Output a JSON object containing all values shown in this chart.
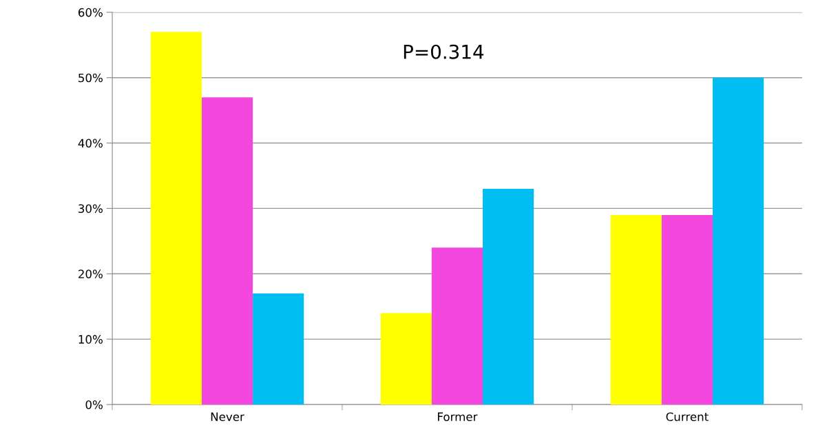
{
  "chart_data": {
    "type": "bar",
    "categories": [
      "Never",
      "Former",
      "Current"
    ],
    "series": [
      {
        "color": "#ffff00",
        "values": [
          57,
          14,
          29
        ]
      },
      {
        "color": "#f447e0",
        "values": [
          47,
          24,
          29
        ]
      },
      {
        "color": "#00bdf2",
        "values": [
          17,
          33,
          50
        ]
      }
    ],
    "ylim": [
      0,
      60
    ],
    "yticks": [
      {
        "value": 0,
        "label": "0%"
      },
      {
        "value": 10,
        "label": "10%"
      },
      {
        "value": 20,
        "label": "20%"
      },
      {
        "value": 30,
        "label": "30%"
      },
      {
        "value": 40,
        "label": "40%"
      },
      {
        "value": 50,
        "label": "50%"
      },
      {
        "value": 60,
        "label": "60%"
      }
    ],
    "grid": "y",
    "annotations": [
      "P=0.314"
    ]
  }
}
